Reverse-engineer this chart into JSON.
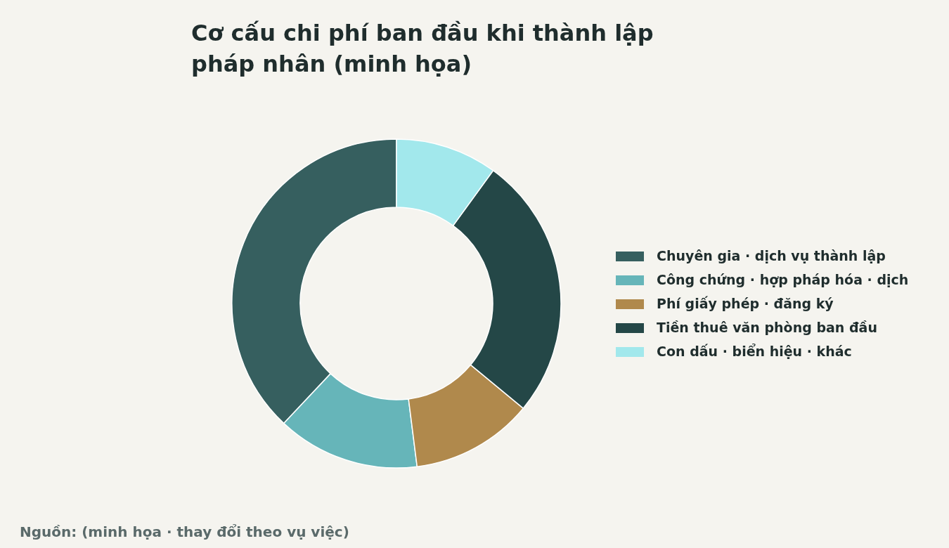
{
  "chart_data": {
    "type": "donut",
    "title": "Cơ cấu chi phí ban đầu khi thành lập\npháp nhân (minh họa)",
    "categories": [
      "Chuyên gia · dịch vụ thành lập",
      "Công chứng · hợp pháp hóa · dịch",
      "Phí giấy phép · đăng ký",
      "Tiền thuê văn phòng ban đầu",
      "Con dấu · biển hiệu · khác"
    ],
    "values": [
      38,
      14,
      12,
      26,
      10
    ],
    "colors": [
      "#365f5f",
      "#66b5b9",
      "#b0894c",
      "#244747",
      "#a2e8ec"
    ],
    "legend": "right",
    "annotations": [
      "Nguồn: (minh họa · thay đổi theo vụ việc)"
    ]
  }
}
